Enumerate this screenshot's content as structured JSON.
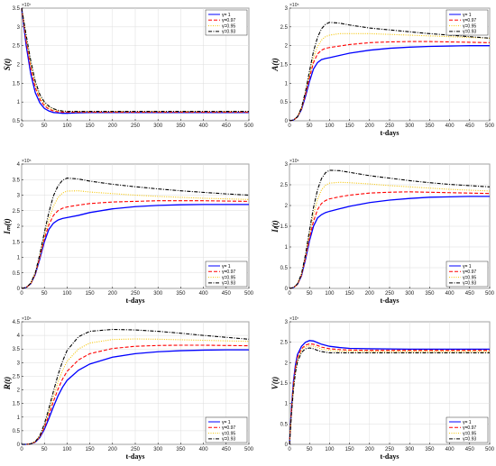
{
  "style": {
    "series_colors": [
      "#0000ff",
      "#ff0000",
      "#f5c400",
      "#000000"
    ],
    "series_dash": [
      "",
      "4,2",
      "1,1.5",
      "4,1.5,1,1.5"
    ]
  },
  "legend_labels": [
    "γ= 1",
    "γ=0.97",
    "γ=0.95",
    "γ=0.93"
  ],
  "chart_data": [
    {
      "type": "line",
      "ylabel": "S(t)",
      "xlabel": "",
      "exponent": "×10⁷",
      "xlim": [
        0,
        500
      ],
      "ylim": [
        0.5,
        3.5
      ],
      "xticks": [
        0,
        50,
        100,
        150,
        200,
        250,
        300,
        350,
        400,
        450,
        500
      ],
      "yticks": [
        0.5,
        1,
        1.5,
        2,
        2.5,
        3,
        3.5
      ],
      "ytick_labels": [
        "0.5",
        "1",
        "1.5",
        "2",
        "2.5",
        "3",
        "3.5"
      ],
      "legend": "top-right",
      "grid": true,
      "x": [
        0,
        10,
        20,
        30,
        40,
        50,
        60,
        70,
        80,
        90,
        100,
        120,
        150,
        200,
        300,
        400,
        500
      ],
      "series": [
        {
          "name": "γ= 1",
          "values": [
            3.5,
            2.5,
            1.75,
            1.25,
            0.98,
            0.83,
            0.76,
            0.72,
            0.71,
            0.7,
            0.7,
            0.71,
            0.72,
            0.72,
            0.72,
            0.72,
            0.72
          ]
        },
        {
          "name": "γ=0.97",
          "values": [
            3.5,
            2.62,
            1.9,
            1.38,
            1.07,
            0.9,
            0.81,
            0.76,
            0.74,
            0.73,
            0.73,
            0.73,
            0.73,
            0.73,
            0.73,
            0.73,
            0.73
          ]
        },
        {
          "name": "γ=0.95",
          "values": [
            3.5,
            2.7,
            2.0,
            1.46,
            1.13,
            0.95,
            0.85,
            0.79,
            0.76,
            0.75,
            0.74,
            0.74,
            0.74,
            0.74,
            0.74,
            0.74,
            0.74
          ]
        },
        {
          "name": "γ=0.93",
          "values": [
            3.5,
            2.78,
            2.1,
            1.55,
            1.2,
            1.0,
            0.89,
            0.82,
            0.78,
            0.76,
            0.75,
            0.75,
            0.75,
            0.75,
            0.75,
            0.75,
            0.75
          ]
        }
      ]
    },
    {
      "type": "line",
      "ylabel": "A(t)",
      "xlabel": "t-days",
      "exponent": "×10⁵",
      "xlim": [
        0,
        500
      ],
      "ylim": [
        0,
        3
      ],
      "xticks": [
        0,
        50,
        100,
        150,
        200,
        250,
        300,
        350,
        400,
        450,
        500
      ],
      "yticks": [
        0,
        0.5,
        1,
        1.5,
        2,
        2.5,
        3
      ],
      "ytick_labels": [
        "0",
        "0.5",
        "1",
        "1.5",
        "2",
        "2.5",
        "3"
      ],
      "legend": "top-right",
      "grid": true,
      "x": [
        0,
        10,
        20,
        30,
        40,
        50,
        60,
        70,
        80,
        90,
        100,
        125,
        150,
        200,
        250,
        300,
        350,
        400,
        450,
        500
      ],
      "series": [
        {
          "name": "γ= 1",
          "values": [
            0,
            0.02,
            0.1,
            0.3,
            0.65,
            1.05,
            1.38,
            1.55,
            1.63,
            1.66,
            1.68,
            1.74,
            1.8,
            1.88,
            1.93,
            1.96,
            1.98,
            1.99,
            2.0,
            2.0
          ]
        },
        {
          "name": "γ=0.97",
          "values": [
            0,
            0.02,
            0.1,
            0.32,
            0.7,
            1.15,
            1.55,
            1.78,
            1.88,
            1.93,
            1.95,
            1.99,
            2.03,
            2.08,
            2.1,
            2.11,
            2.11,
            2.1,
            2.09,
            2.08
          ]
        },
        {
          "name": "γ=0.95",
          "values": [
            0,
            0.02,
            0.1,
            0.33,
            0.74,
            1.22,
            1.68,
            1.98,
            2.15,
            2.24,
            2.28,
            2.32,
            2.32,
            2.32,
            2.3,
            2.28,
            2.26,
            2.24,
            2.22,
            2.2
          ]
        },
        {
          "name": "γ=0.93",
          "values": [
            0,
            0.02,
            0.11,
            0.35,
            0.78,
            1.32,
            1.85,
            2.22,
            2.45,
            2.57,
            2.62,
            2.6,
            2.55,
            2.47,
            2.42,
            2.37,
            2.32,
            2.28,
            2.24,
            2.2
          ]
        }
      ]
    },
    {
      "type": "line",
      "ylabel": "Iₘ(t)",
      "xlabel": "t-days",
      "exponent": "×10⁵",
      "xlim": [
        0,
        500
      ],
      "ylim": [
        0,
        4
      ],
      "xticks": [
        0,
        50,
        100,
        150,
        200,
        250,
        300,
        350,
        400,
        450,
        500
      ],
      "yticks": [
        0,
        0.5,
        1,
        1.5,
        2,
        2.5,
        3,
        3.5,
        4
      ],
      "ytick_labels": [
        "0",
        "0.5",
        "1",
        "1.5",
        "2",
        "2.5",
        "3",
        "3.5",
        "4"
      ],
      "legend": "bottom-right",
      "grid": true,
      "x": [
        0,
        10,
        20,
        30,
        40,
        50,
        60,
        70,
        80,
        90,
        100,
        125,
        150,
        200,
        250,
        300,
        350,
        400,
        450,
        500
      ],
      "series": [
        {
          "name": "γ= 1",
          "values": [
            0,
            0.03,
            0.15,
            0.45,
            0.95,
            1.5,
            1.9,
            2.1,
            2.2,
            2.25,
            2.28,
            2.35,
            2.44,
            2.56,
            2.63,
            2.67,
            2.69,
            2.7,
            2.7,
            2.7
          ]
        },
        {
          "name": "γ=0.97",
          "values": [
            0,
            0.03,
            0.15,
            0.47,
            1.0,
            1.6,
            2.05,
            2.35,
            2.5,
            2.58,
            2.62,
            2.68,
            2.73,
            2.78,
            2.8,
            2.82,
            2.82,
            2.82,
            2.81,
            2.8
          ]
        },
        {
          "name": "γ=0.95",
          "values": [
            0,
            0.03,
            0.16,
            0.48,
            1.03,
            1.68,
            2.22,
            2.65,
            2.92,
            3.07,
            3.13,
            3.14,
            3.1,
            3.05,
            3.0,
            2.96,
            2.93,
            2.9,
            2.88,
            2.86
          ]
        },
        {
          "name": "γ=0.93",
          "values": [
            0,
            0.03,
            0.17,
            0.5,
            1.1,
            1.8,
            2.45,
            2.98,
            3.3,
            3.48,
            3.55,
            3.52,
            3.45,
            3.35,
            3.27,
            3.2,
            3.14,
            3.09,
            3.04,
            3.0
          ]
        }
      ]
    },
    {
      "type": "line",
      "ylabel": "Iₗ(t)",
      "xlabel": "t-days",
      "exponent": "×10⁵",
      "xlim": [
        0,
        500
      ],
      "ylim": [
        0,
        3
      ],
      "xticks": [
        0,
        50,
        100,
        150,
        200,
        250,
        300,
        350,
        400,
        450,
        500
      ],
      "yticks": [
        0,
        0.5,
        1,
        1.5,
        2,
        2.5,
        3
      ],
      "ytick_labels": [
        "0",
        "0.5",
        "1",
        "1.5",
        "2",
        "2.5",
        "3"
      ],
      "legend": "bottom-right",
      "grid": true,
      "x": [
        0,
        10,
        20,
        30,
        40,
        50,
        60,
        70,
        80,
        90,
        100,
        125,
        150,
        200,
        250,
        300,
        350,
        400,
        450,
        500
      ],
      "series": [
        {
          "name": "γ= 1",
          "values": [
            0,
            0.02,
            0.1,
            0.3,
            0.7,
            1.15,
            1.5,
            1.7,
            1.78,
            1.83,
            1.86,
            1.92,
            1.98,
            2.07,
            2.13,
            2.17,
            2.2,
            2.21,
            2.22,
            2.22
          ]
        },
        {
          "name": "γ=0.97",
          "values": [
            0,
            0.02,
            0.1,
            0.32,
            0.74,
            1.22,
            1.62,
            1.9,
            2.05,
            2.12,
            2.16,
            2.21,
            2.25,
            2.3,
            2.32,
            2.33,
            2.32,
            2.31,
            2.3,
            2.29
          ]
        },
        {
          "name": "γ=0.95",
          "values": [
            0,
            0.02,
            0.11,
            0.33,
            0.77,
            1.3,
            1.78,
            2.15,
            2.38,
            2.49,
            2.54,
            2.56,
            2.55,
            2.52,
            2.48,
            2.45,
            2.42,
            2.39,
            2.37,
            2.35
          ]
        },
        {
          "name": "γ=0.93",
          "values": [
            0,
            0.02,
            0.11,
            0.35,
            0.82,
            1.4,
            1.95,
            2.38,
            2.65,
            2.79,
            2.85,
            2.84,
            2.8,
            2.72,
            2.66,
            2.6,
            2.55,
            2.51,
            2.48,
            2.45
          ]
        }
      ]
    },
    {
      "type": "line",
      "ylabel": "R(t)",
      "xlabel": "t-days",
      "exponent": "×10⁶",
      "xlim": [
        0,
        500
      ],
      "ylim": [
        0,
        4.5
      ],
      "xticks": [
        0,
        50,
        100,
        150,
        200,
        250,
        300,
        350,
        400,
        450,
        500
      ],
      "yticks": [
        0,
        0.5,
        1,
        1.5,
        2,
        2.5,
        3,
        3.5,
        4,
        4.5
      ],
      "ytick_labels": [
        "0",
        "0.5",
        "1",
        "1.5",
        "2",
        "2.5",
        "3",
        "3.5",
        "4",
        "4.5"
      ],
      "legend": "bottom-right",
      "grid": true,
      "x": [
        0,
        10,
        20,
        30,
        40,
        50,
        60,
        70,
        80,
        90,
        100,
        125,
        150,
        200,
        250,
        300,
        350,
        400,
        450,
        500
      ],
      "series": [
        {
          "name": "γ= 1",
          "values": [
            0,
            0.0,
            0.02,
            0.08,
            0.25,
            0.55,
            0.95,
            1.38,
            1.78,
            2.1,
            2.35,
            2.72,
            2.95,
            3.2,
            3.33,
            3.4,
            3.44,
            3.46,
            3.47,
            3.47
          ]
        },
        {
          "name": "γ=0.97",
          "values": [
            0,
            0.0,
            0.02,
            0.09,
            0.28,
            0.62,
            1.08,
            1.58,
            2.03,
            2.4,
            2.68,
            3.1,
            3.33,
            3.52,
            3.6,
            3.63,
            3.64,
            3.64,
            3.63,
            3.62
          ]
        },
        {
          "name": "γ=0.95",
          "values": [
            0,
            0.0,
            0.02,
            0.1,
            0.3,
            0.68,
            1.2,
            1.75,
            2.28,
            2.72,
            3.05,
            3.5,
            3.72,
            3.85,
            3.87,
            3.86,
            3.84,
            3.82,
            3.8,
            3.78
          ]
        },
        {
          "name": "γ=0.93",
          "values": [
            0,
            0.0,
            0.02,
            0.1,
            0.32,
            0.75,
            1.32,
            1.95,
            2.55,
            3.05,
            3.45,
            3.95,
            4.15,
            4.22,
            4.2,
            4.15,
            4.08,
            4.0,
            3.93,
            3.86
          ]
        }
      ]
    },
    {
      "type": "line",
      "ylabel": "V(t)",
      "xlabel": "t-days",
      "exponent": "×10⁷",
      "xlim": [
        0,
        500
      ],
      "ylim": [
        0,
        3
      ],
      "xticks": [
        0,
        50,
        100,
        150,
        200,
        250,
        300,
        350,
        400,
        450,
        500
      ],
      "yticks": [
        0,
        0.5,
        1,
        1.5,
        2,
        2.5,
        3
      ],
      "ytick_labels": [
        "0",
        "0.5",
        "1",
        "1.5",
        "2",
        "2.5",
        "3"
      ],
      "legend": "bottom-right",
      "grid": true,
      "x": [
        0,
        5,
        10,
        15,
        20,
        30,
        40,
        50,
        60,
        70,
        80,
        100,
        125,
        150,
        200,
        300,
        400,
        500
      ],
      "series": [
        {
          "name": "γ= 1",
          "values": [
            0,
            0.9,
            1.55,
            1.95,
            2.2,
            2.4,
            2.5,
            2.54,
            2.53,
            2.49,
            2.45,
            2.4,
            2.37,
            2.35,
            2.34,
            2.33,
            2.33,
            2.33
          ]
        },
        {
          "name": "γ=0.97",
          "values": [
            0,
            0.85,
            1.48,
            1.88,
            2.13,
            2.34,
            2.43,
            2.46,
            2.45,
            2.42,
            2.38,
            2.34,
            2.32,
            2.31,
            2.3,
            2.3,
            2.3,
            2.3
          ]
        },
        {
          "name": "γ=0.95",
          "values": [
            0,
            0.8,
            1.42,
            1.82,
            2.08,
            2.3,
            2.39,
            2.41,
            2.4,
            2.37,
            2.33,
            2.3,
            2.28,
            2.28,
            2.27,
            2.27,
            2.27,
            2.27
          ]
        },
        {
          "name": "γ=0.93",
          "values": [
            0,
            0.75,
            1.35,
            1.76,
            2.02,
            2.25,
            2.34,
            2.36,
            2.34,
            2.3,
            2.27,
            2.24,
            2.24,
            2.24,
            2.24,
            2.24,
            2.24,
            2.24
          ]
        }
      ]
    }
  ]
}
